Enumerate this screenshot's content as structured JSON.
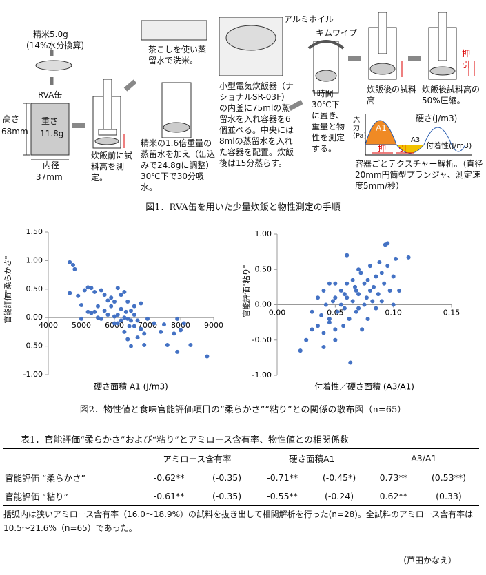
{
  "figure1": {
    "rice": "精米5.0g",
    "rice_note": "(14%水分換算)",
    "can": "RVA缶",
    "height_label": "高さ",
    "height_value": "68mm",
    "weight_label": "重さ",
    "weight_value": "11.8g",
    "diameter_label": "内径",
    "diameter_value": "37mm",
    "step1": "炊飯前に試料高を測定。",
    "step2_top": "茶こしを使い蒸留水で洗米。",
    "step2": "精米の1.6倍重量の蒸留水を加え（缶込みで24.8gに調整）30℃下で30分吸水。",
    "step3": "小型電気炊飯器（ナショナルSR-03F）の内釜に75mlの蒸留水を入れ容器を6個並べる。中央には8mlの蒸留水を入れた容器を配置。炊飯後は15分蒸らす。",
    "foil": "アルミホイル",
    "wipe": "キムワイプ",
    "step4": "1時間30℃下に置き、重量と物性を測定する。",
    "step5": "炊飯後の試料高",
    "step6": "炊飯後試料高の50%圧縮。",
    "push_pull": "押引",
    "graph_y": "応力(Pa)",
    "hardness": "硬さ(J/m3)",
    "a1": "A1",
    "a3": "A3",
    "adhesion": "付着性(J/m3)",
    "push": "押",
    "pull": "引",
    "step7": "容器ごとテクスチャー解析。（直径20mm円筒型プランジャ、測定速度5mm/秒）",
    "caption": "図1．RVA缶を用いた少量炊飯と物性測定の手順"
  },
  "chart_data": [
    {
      "type": "scatter",
      "y_label": "官能評価\"柔らかさ\"",
      "x_label": "硬さ面積 A1 (J/m3)",
      "color": "#4472c4",
      "xlim": [
        4000,
        9000
      ],
      "xticks": [
        4000,
        5000,
        6000,
        7000,
        8000,
        9000
      ],
      "ylim": [
        -1,
        1.5
      ],
      "yticks": [
        {
          "value": 1.5,
          "label": "1.50"
        },
        {
          "value": 1,
          "label": "1.00"
        },
        {
          "value": 0.5,
          "label": "0.50"
        },
        {
          "value": 0,
          "label": "0.00"
        },
        {
          "value": -0.5,
          "label": "-0.50"
        },
        {
          "value": -1,
          "label": "-1.00"
        }
      ],
      "x": [
        4650,
        4750,
        4800,
        4650,
        4900,
        5000,
        5100,
        5200,
        5300,
        5400,
        5200,
        5300,
        5500,
        5600,
        5700,
        5800,
        5900,
        5900,
        6000,
        6100,
        6200,
        6300,
        6400,
        6500,
        6600,
        5000,
        5400,
        5600,
        5800,
        6000,
        6100,
        6200,
        6300,
        6400,
        6500,
        6700,
        6800,
        6600,
        6800,
        6900,
        7000,
        6300,
        6400,
        6500,
        6700,
        6900,
        7200,
        7400,
        7500,
        7600,
        7900,
        7900,
        8000,
        8100,
        8300,
        8800,
        6100,
        6200,
        5700,
        6600,
        6000,
        6450,
        7800,
        5500,
        6350
      ],
      "values": [
        0.97,
        0.92,
        0.85,
        0.43,
        0.38,
        0.22,
        0.48,
        0.53,
        0.52,
        0.45,
        0.1,
        0.08,
        0.2,
        0.48,
        0.4,
        0.3,
        0.2,
        0.35,
        0.28,
        0.52,
        0.4,
        0.45,
        0.28,
        0.12,
        0.2,
        -0.02,
        0.1,
        -0.02,
        0.05,
        0.02,
        -0.1,
        -0.05,
        0,
        -0.02,
        -0.05,
        -0.05,
        0.25,
        -0.15,
        -0.2,
        -0.28,
        -0.02,
        -0.25,
        -0.38,
        -0.5,
        -0.35,
        -0.48,
        -0.1,
        -0.25,
        -0.12,
        -0.48,
        -0.02,
        -0.6,
        -0.22,
        -0.1,
        -0.48,
        -0.68,
        0.05,
        0.15,
        0.12,
        0.05,
        -0.1,
        -0.15,
        -0.28,
        0,
        0.1
      ]
    },
    {
      "type": "scatter",
      "y_label": "官能評価\"粘り\"",
      "x_label": "付着性／硬さ面積 (A3/A1)",
      "color": "#4472c4",
      "xlim": [
        0,
        0.15
      ],
      "xticks": [
        {
          "value": 0,
          "label": "0.00"
        },
        {
          "value": 0.05,
          "label": "0.05"
        },
        {
          "value": 0.1,
          "label": "0.10"
        },
        {
          "value": 0.15,
          "label": "0.15"
        }
      ],
      "ylim": [
        -1,
        1
      ],
      "yticks": [
        {
          "value": 1,
          "label": "1.00"
        },
        {
          "value": 0.5,
          "label": "0.50"
        },
        {
          "value": 0,
          "label": "0.00"
        },
        {
          "value": -0.5,
          "label": "-0.50"
        },
        {
          "value": -1,
          "label": "-1.00"
        }
      ],
      "x": [
        0.02,
        0.025,
        0.03,
        0.03,
        0.035,
        0.035,
        0.04,
        0.04,
        0.04,
        0.042,
        0.045,
        0.045,
        0.048,
        0.05,
        0.05,
        0.05,
        0.052,
        0.055,
        0.055,
        0.057,
        0.058,
        0.06,
        0.06,
        0.06,
        0.062,
        0.063,
        0.065,
        0.065,
        0.067,
        0.068,
        0.07,
        0.07,
        0.07,
        0.072,
        0.073,
        0.075,
        0.075,
        0.077,
        0.078,
        0.08,
        0.08,
        0.082,
        0.083,
        0.085,
        0.085,
        0.087,
        0.088,
        0.09,
        0.09,
        0.092,
        0.093,
        0.095,
        0.095,
        0.097,
        0.1,
        0.1,
        0.102,
        0.105,
        0.113,
        0.045,
        0.058,
        0.068,
        0.038,
        0.05,
        0.078
      ],
      "values": [
        -0.65,
        -0.5,
        -0.35,
        -0.1,
        -0.3,
        0.1,
        0.2,
        -0.4,
        -0.6,
        0,
        0.3,
        -0.2,
        0.05,
        0.3,
        -0.5,
        0.1,
        -0.1,
        0.2,
        0,
        -0.3,
        -0.05,
        0.7,
        0.3,
        0.1,
        -0.2,
        -0.82,
        0.05,
        0.35,
        0.25,
        -0.1,
        0.5,
        0.15,
        -0.05,
        0.45,
        -0.35,
        0.3,
        0,
        0.1,
        -0.2,
        0.55,
        0.2,
        0.05,
        0.25,
        0.4,
        -0.05,
        0.15,
        0.6,
        0.45,
        0.05,
        0.3,
        0.85,
        0.87,
        0.55,
        0.2,
        0.4,
        0,
        0.65,
        0.2,
        0.67,
        -0.25,
        0.15,
        0.2,
        -0.15,
        -0.35,
        0.35
      ]
    }
  ],
  "figure2": {
    "caption": "図2．物性値と食味官能評価項目の“柔らかさ”“粘り”との関係の散布図（n=65）"
  },
  "table": {
    "title": "表1．官能評価“柔らかさ”および“粘り”とアミロース含有率、物性値との相関係数",
    "header": [
      "アミロース含有率",
      "硬さ面積A1",
      "A3/A1"
    ],
    "rows": [
      [
        "官能評価 “柔らかさ”",
        "-0.62**",
        "(-0.35)",
        "-0.71**",
        "(-0.45*)",
        "0.73**",
        "(0.53**)"
      ],
      [
        "官能評価 “粘り”",
        "-0.61**",
        "(-0.35)",
        "-0.55**",
        "(-0.24)",
        "0.62**",
        "(0.33)"
      ]
    ],
    "note": "括弧内は狭いアミロース含有率（16.0～18.9%）の試料を抜き出して相関解析を行った(n=28)。全試料のアミロース含有率は10.5～21.6%（n=65）であった。"
  },
  "author": "（芦田かなえ）"
}
